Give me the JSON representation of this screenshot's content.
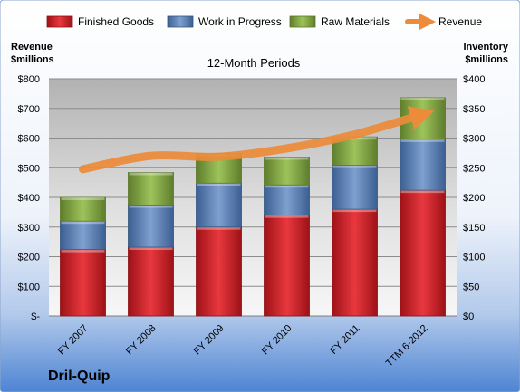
{
  "chart_data": {
    "type": "bar",
    "stacked": true,
    "title": "12-Month Periods",
    "company": "Dril-Quip",
    "categories": [
      "FY 2007",
      "FY 2008",
      "FY 2009",
      "FY 2010",
      "FY 2011",
      "TTM 6-2012"
    ],
    "series": [
      {
        "name": "Finished Goods",
        "type": "bar",
        "axis": "right",
        "color": "#d8242b",
        "values": [
          112,
          116,
          150,
          170,
          180,
          212
        ]
      },
      {
        "name": "Work in Progress",
        "type": "bar",
        "axis": "right",
        "color": "#5f86be",
        "values": [
          48,
          71,
          74,
          51,
          74,
          86
        ]
      },
      {
        "name": "Raw Materials",
        "type": "bar",
        "axis": "right",
        "color": "#89b04a",
        "values": [
          40,
          55,
          50,
          47,
          48,
          70
        ]
      },
      {
        "name": "Revenue",
        "type": "line",
        "axis": "left",
        "color": "#ec8b3a",
        "values": [
          495,
          540,
          537,
          565,
          612,
          680
        ]
      }
    ],
    "yleft": {
      "label_line1": "Revenue",
      "label_line2": "$millions",
      "range": [
        0,
        800
      ],
      "ticks": [
        "$-",
        "$100",
        "$200",
        "$300",
        "$400",
        "$500",
        "$600",
        "$700",
        "$800"
      ]
    },
    "yright": {
      "label_line1": "Inventory",
      "label_line2": "$millions",
      "range": [
        0,
        400
      ],
      "ticks": [
        "$0",
        "$50",
        "$100",
        "$150",
        "$200",
        "$250",
        "$300",
        "$350",
        "$400"
      ]
    },
    "grid": true,
    "legend_position": "top"
  }
}
